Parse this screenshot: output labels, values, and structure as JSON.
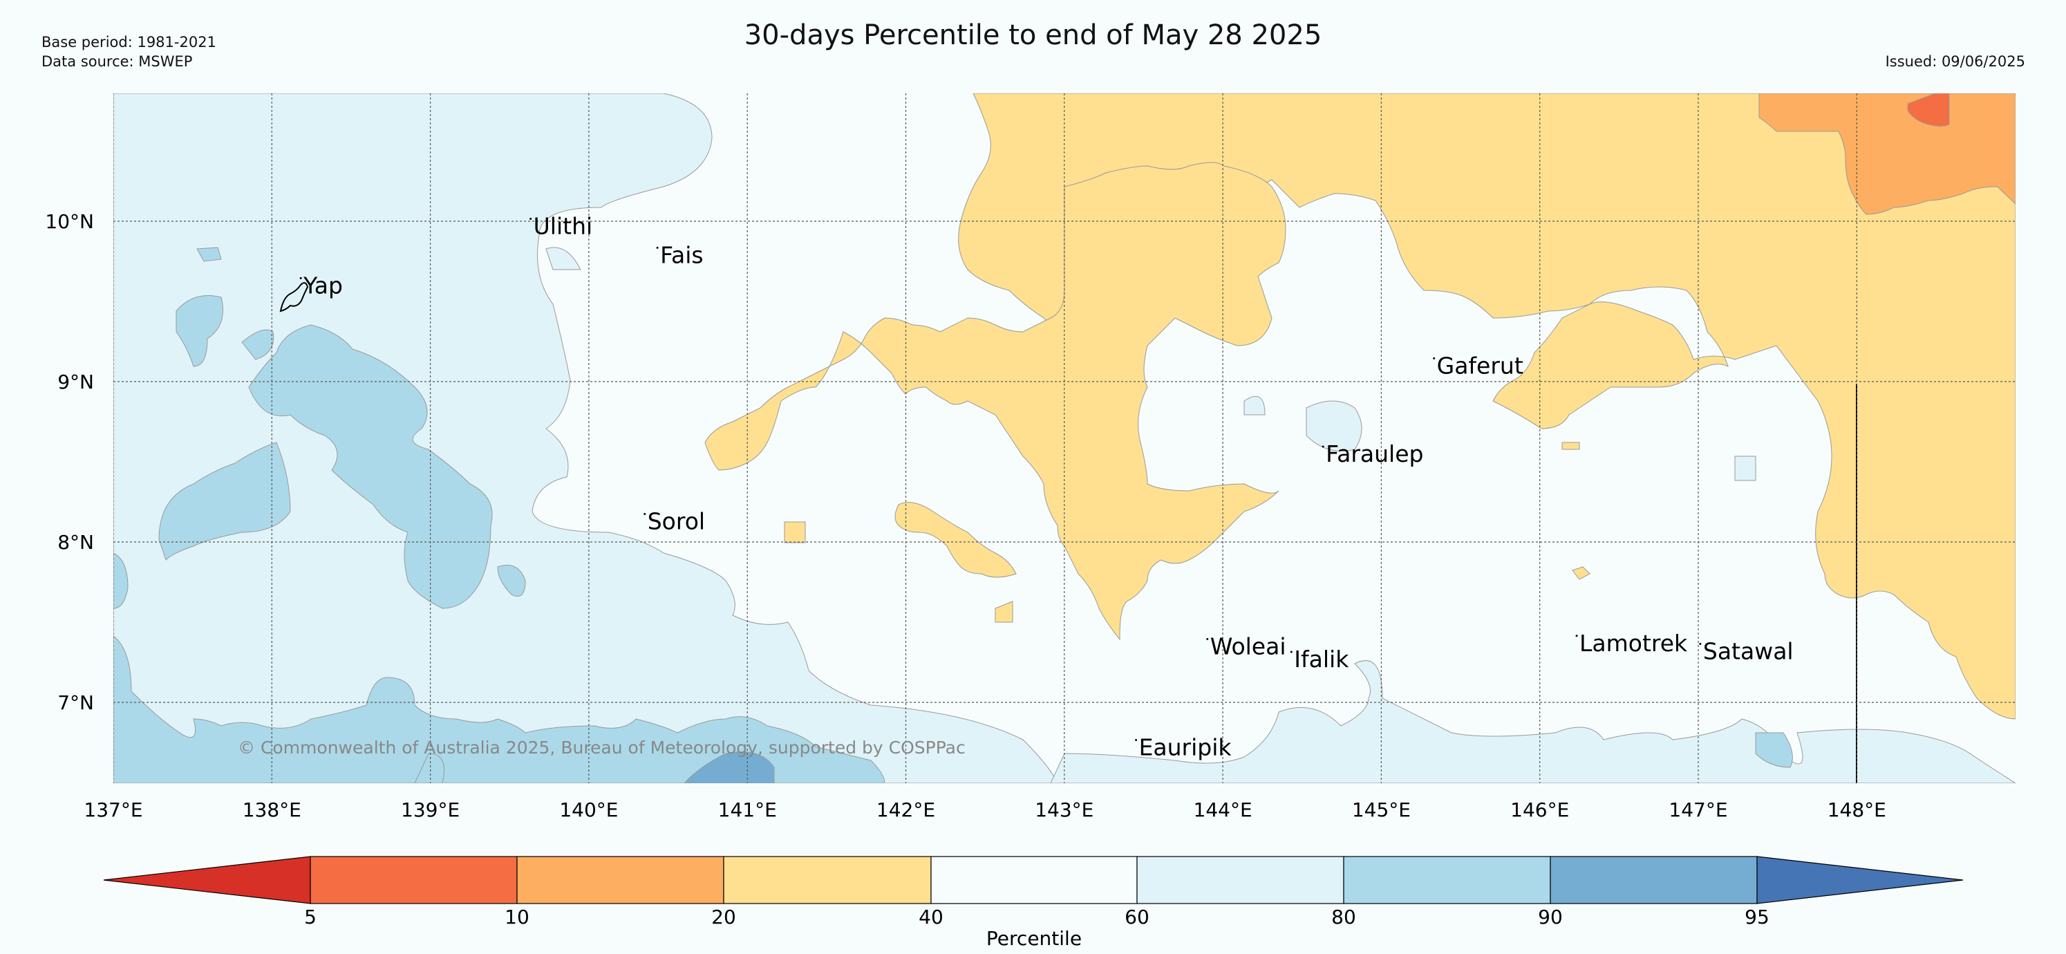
{
  "header": {
    "title": "30-days Percentile to end of May 28 2025",
    "base_period": "Base period: 1981-2021",
    "data_source": "Data source: MSWEP",
    "issued": "Issued: 09/06/2025"
  },
  "map": {
    "lon_range": [
      137,
      149
    ],
    "lat_range": [
      6.5,
      10.8
    ],
    "lon_ticks": [
      "137°E",
      "138°E",
      "139°E",
      "140°E",
      "141°E",
      "142°E",
      "143°E",
      "144°E",
      "145°E",
      "146°E",
      "147°E",
      "148°E"
    ],
    "lat_ticks": [
      "10°N",
      "9°N",
      "8°N",
      "7°N"
    ],
    "places": [
      {
        "name": "Yap",
        "lon": 138.2,
        "lat": 9.55
      },
      {
        "name": "Ulithi",
        "lon": 139.65,
        "lat": 9.92
      },
      {
        "name": "Fais",
        "lon": 140.45,
        "lat": 9.74
      },
      {
        "name": "Gaferut",
        "lon": 145.35,
        "lat": 9.05
      },
      {
        "name": "Faraulep",
        "lon": 144.65,
        "lat": 8.5
      },
      {
        "name": "Sorol",
        "lon": 140.37,
        "lat": 8.08
      },
      {
        "name": "Woleai",
        "lon": 143.92,
        "lat": 7.3
      },
      {
        "name": "Ifalik",
        "lon": 144.45,
        "lat": 7.22
      },
      {
        "name": "Lamotrek",
        "lon": 146.25,
        "lat": 7.32
      },
      {
        "name": "Satawal",
        "lon": 147.03,
        "lat": 7.27
      },
      {
        "name": "Eauripik",
        "lon": 143.47,
        "lat": 6.67
      }
    ],
    "copyright": "© Commonwealth of Australia 2025, Bureau of Meteorology, supported by COSPPac"
  },
  "colorbar": {
    "label": "Percentile",
    "ticks": [
      "5",
      "10",
      "20",
      "40",
      "60",
      "80",
      "90",
      "95"
    ],
    "colors": [
      "#d73027",
      "#f46d43",
      "#fdae61",
      "#fee090",
      "#f7fcfc",
      "#e0f3f8",
      "#abd9e9",
      "#74add1",
      "#4575b4"
    ]
  }
}
